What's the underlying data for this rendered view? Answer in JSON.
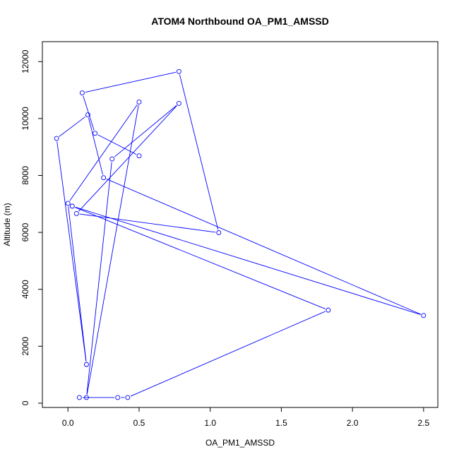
{
  "chart_data": {
    "type": "line",
    "title": "ATOM4 Northbound OA_PM1_AMSSD",
    "xlabel": "OA_PM1_AMSSD",
    "ylabel": "Altitude (m)",
    "xlim": [
      -0.18,
      2.6
    ],
    "ylim": [
      -150,
      12700
    ],
    "xticks": [
      0.0,
      0.5,
      1.0,
      1.5,
      2.0,
      2.5
    ],
    "xtick_labels": [
      "0.0",
      "0.5",
      "1.0",
      "1.5",
      "2.0",
      "2.5"
    ],
    "yticks": [
      0,
      2000,
      4000,
      6000,
      8000,
      10000,
      12000
    ],
    "ytick_labels": [
      "0",
      "2000",
      "4000",
      "6000",
      "8000",
      "10000",
      "12000"
    ],
    "grid": false,
    "marker": "open-circle",
    "series": [
      {
        "color": "#0000ff",
        "points": [
          [
            0.08,
            200
          ],
          [
            0.35,
            200
          ],
          [
            0.42,
            200
          ],
          [
            1.83,
            3270
          ],
          [
            0.03,
            6920
          ],
          [
            2.5,
            3080
          ],
          [
            0.25,
            7920
          ],
          [
            0.14,
            10130
          ],
          [
            -0.08,
            9300
          ],
          [
            0.13,
            1360
          ],
          [
            0.0,
            7020
          ],
          [
            0.5,
            10580
          ],
          [
            0.13,
            200
          ],
          [
            0.31,
            8580
          ],
          [
            0.78,
            10530
          ],
          [
            0.06,
            6660
          ],
          [
            1.06,
            5990
          ],
          [
            0.78,
            11650
          ],
          [
            0.1,
            10900
          ],
          [
            0.19,
            9480
          ],
          [
            0.5,
            8690
          ]
        ]
      }
    ]
  }
}
